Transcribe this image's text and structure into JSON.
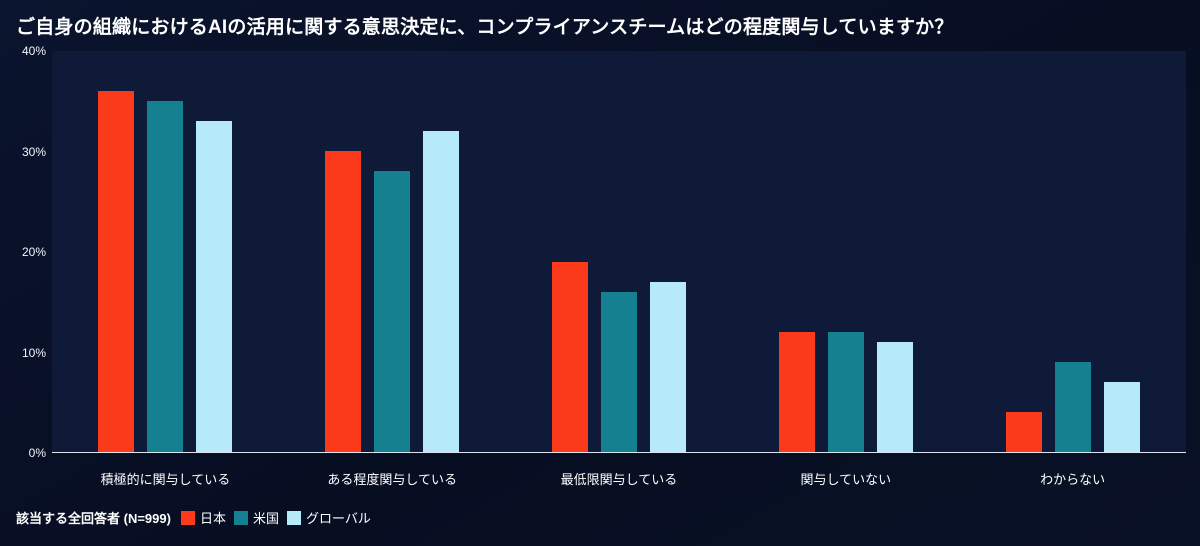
{
  "title": "ご自身の組織におけるAIの活用に関する意思決定に、コンプライアンスチームはどの程度関与していますか？",
  "legend": {
    "note": "該当する全回答者 (N=999)"
  },
  "colors": {
    "background": "#070e22",
    "plot_background": "#0e1a38",
    "axis_line": "#dde4ee",
    "text": "#ffffff"
  },
  "chart_data": {
    "type": "bar",
    "title": "ご自身の組織におけるAIの活用に関する意思決定に、コンプライアンスチームはどの程度関与していますか？",
    "categories": [
      "積極的に関与している",
      "ある程度関与している",
      "最低限関与している",
      "関与していない",
      "わからない"
    ],
    "series": [
      {
        "name": "日本",
        "color": "#fb3a1b",
        "values": [
          36,
          30,
          19,
          12,
          4
        ]
      },
      {
        "name": "米国",
        "color": "#15808f",
        "values": [
          35,
          28,
          16,
          12,
          9
        ]
      },
      {
        "name": "グローバル",
        "color": "#b7eaf8",
        "values": [
          33,
          32,
          17,
          11,
          7
        ]
      }
    ],
    "xlabel": "",
    "ylabel": "",
    "ylim": [
      0,
      40
    ],
    "yticks": [
      0,
      10,
      20,
      30,
      40
    ],
    "ytick_labels": [
      "0%",
      "10%",
      "20%",
      "30%",
      "40%"
    ],
    "grid": false,
    "legend_position": "bottom"
  }
}
